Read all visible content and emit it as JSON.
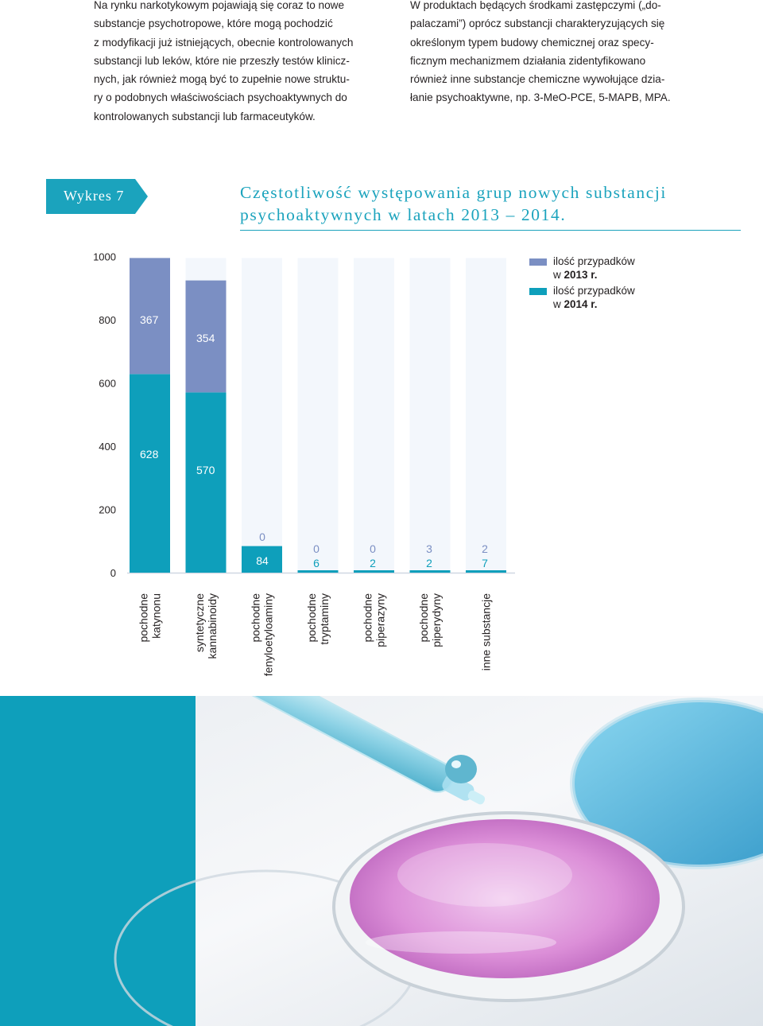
{
  "text_left": [
    "Na rynku narkotykowym pojawiają się coraz to nowe",
    "substancje psychotropowe, które mogą pochodzić",
    "z modyfikacji już istniejących, obecnie kontrolowanych",
    "substancji lub leków, które nie przeszły testów klinicz-",
    "nych, jak również mogą być to zupełnie nowe struktu-",
    "ry o podobnych właściwościach psychoaktywnych do",
    "kontrolowanych substancji lub farmaceutyków."
  ],
  "text_right": [
    "W produktach będących środkami zastępczymi („do-",
    "palaczami”) oprócz substancji charakteryzujących się",
    "określonym typem budowy chemicznej oraz specy-",
    "ficznym mechanizmem działania zidentyfikowano",
    "również inne substancje chemiczne wywołujące dzia-",
    "łanie psychoaktywne, np. 3-MeO-PCE, 5-MAPB, MPA."
  ],
  "figure_tag": "Wykres 7",
  "chart_data": {
    "type": "bar",
    "stacked": true,
    "title": "Częstotliwość występowania grup nowych substancji psychoaktywnych w latach 2013 – 2014.",
    "y_ticks": [
      "1000",
      "800",
      "600",
      "400",
      "200",
      "0"
    ],
    "ylim": [
      0,
      1000
    ],
    "categories": [
      [
        "pochodne",
        "katynonu"
      ],
      [
        "syntetyczne",
        "kannabinoidy"
      ],
      [
        "pochodne",
        "fenyloetyloaminy"
      ],
      [
        "pochodne",
        "tryptaminy"
      ],
      [
        "pochodne",
        "piperazyny"
      ],
      [
        "pochodne",
        "piperydyny"
      ],
      [
        "inne substancje"
      ]
    ],
    "series": [
      {
        "name": "2014",
        "values": [
          628,
          570,
          84,
          6,
          2,
          2,
          7
        ],
        "labels": [
          "628",
          "570",
          "84",
          "6",
          "2",
          "2",
          "7"
        ],
        "color": "#0e9fbb"
      },
      {
        "name": "2013",
        "values": [
          367,
          354,
          0,
          0,
          0,
          3,
          2
        ],
        "labels": [
          "367",
          "354",
          "0",
          "0",
          "0",
          "3",
          "2"
        ],
        "color": "#7b8fc3"
      }
    ],
    "legend": {
      "position": "top-right",
      "items": [
        {
          "line1": "ilość przypadków",
          "prefix": "w ",
          "bold": "2013 r.",
          "color": "#7b8fc3"
        },
        {
          "line1": "ilość przypadków",
          "prefix": "w ",
          "bold": "2014 r.",
          "color": "#0e9fbb"
        }
      ]
    },
    "colors": {
      "column_bg": "#f3f7fc",
      "axis": "#cfd7e2",
      "text": "#231f20"
    }
  },
  "page_colors": {
    "accent": "#1ba3bd",
    "teal_block": "#0e9fbb"
  },
  "photo": {
    "icon": "petri-dish-pipette-photo"
  }
}
